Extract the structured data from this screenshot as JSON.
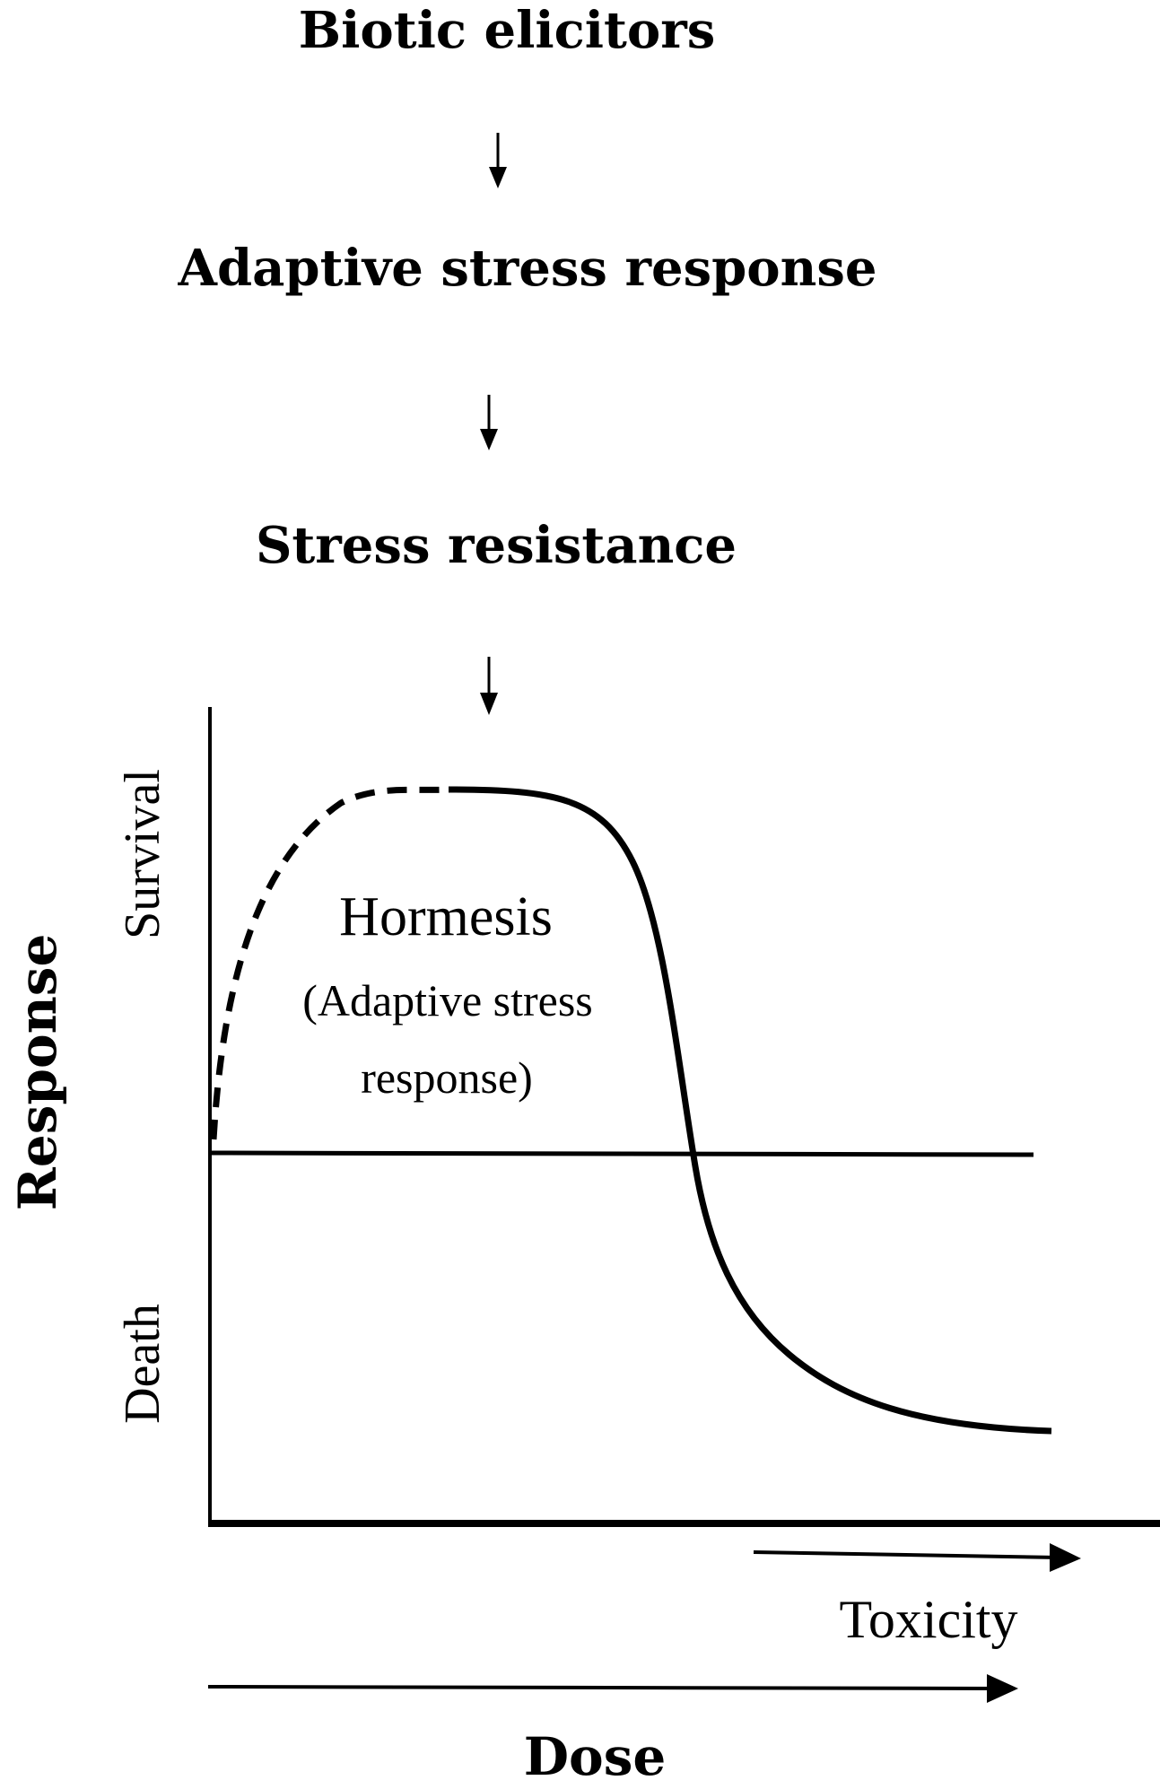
{
  "flow": {
    "step1": "Biotic elicitors",
    "step2": "Adaptive stress response",
    "step3": "Stress resistance"
  },
  "plot": {
    "y_axis_title": "Response",
    "y_upper_label": "Survival",
    "y_lower_label": "Death",
    "hormesis_title": "Hormesis",
    "hormesis_sub_line1": "(Adaptive stress",
    "hormesis_sub_line2": "response)",
    "toxicity_label": "Toxicity",
    "dose_label": "Dose"
  },
  "colors": {
    "line": "#000000",
    "background": "#ffffff"
  }
}
